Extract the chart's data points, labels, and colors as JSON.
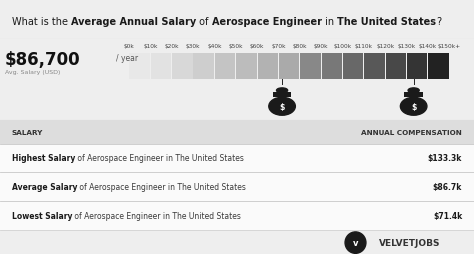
{
  "segments": [
    [
      "What is the ",
      false
    ],
    [
      "Average Annual Salary",
      true
    ],
    [
      " of ",
      false
    ],
    [
      "Aerospace Engineer",
      true
    ],
    [
      " in ",
      false
    ],
    [
      "The United States",
      true
    ],
    [
      "?",
      false
    ]
  ],
  "avg_salary_display": "$86,700",
  "avg_salary_sub": "/ year",
  "avg_salary_label": "Avg. Salary (USD)",
  "tick_labels": [
    "$0k",
    "$10k",
    "$20k",
    "$30k",
    "$40k",
    "$50k",
    "$60k",
    "$70k",
    "$80k",
    "$90k",
    "$100k",
    "$110k",
    "$120k",
    "$130k",
    "$140k",
    "$150k+"
  ],
  "bar_colors": [
    "#e8e8e8",
    "#e2e2e2",
    "#d8d8d8",
    "#cecece",
    "#c4c4c4",
    "#bcbcbc",
    "#b2b2b2",
    "#aaaaaa",
    "#888888",
    "#787878",
    "#686868",
    "#585858",
    "#484848",
    "#343434",
    "#222222"
  ],
  "marker1_idx": 7.17,
  "marker2_idx": 13.33,
  "table_header_col1": "SALARY",
  "table_header_col2": "ANNUAL COMPENSATION",
  "table_rows": [
    {
      "label_bold": "Highest Salary",
      "label_rest": " of Aerospace Engineer in The United States",
      "value": "$133.3k"
    },
    {
      "label_bold": "Average Salary",
      "label_rest": " of Aerospace Engineer in The United States",
      "value": "$86.7k"
    },
    {
      "label_bold": "Lowest Salary",
      "label_rest": " of Aerospace Engineer in The United States",
      "value": "$71.4k"
    }
  ],
  "bg_color": "#eeeeee",
  "title_bg": "#fafafa",
  "bar_section_bg": "#eeeeee",
  "table_bg": "#e8e8e8",
  "row_bg": "#fafafa",
  "header_bg": "#dddddd",
  "brand_name": "VELVETJOBS",
  "title_fontsize": 7.0,
  "tick_fontsize": 4.2,
  "salary_fontsize": 12.0,
  "sub_fontsize": 5.5,
  "label_fontsize": 4.5,
  "table_header_fontsize": 5.2,
  "table_row_fontsize": 5.5,
  "brand_fontsize": 6.5
}
